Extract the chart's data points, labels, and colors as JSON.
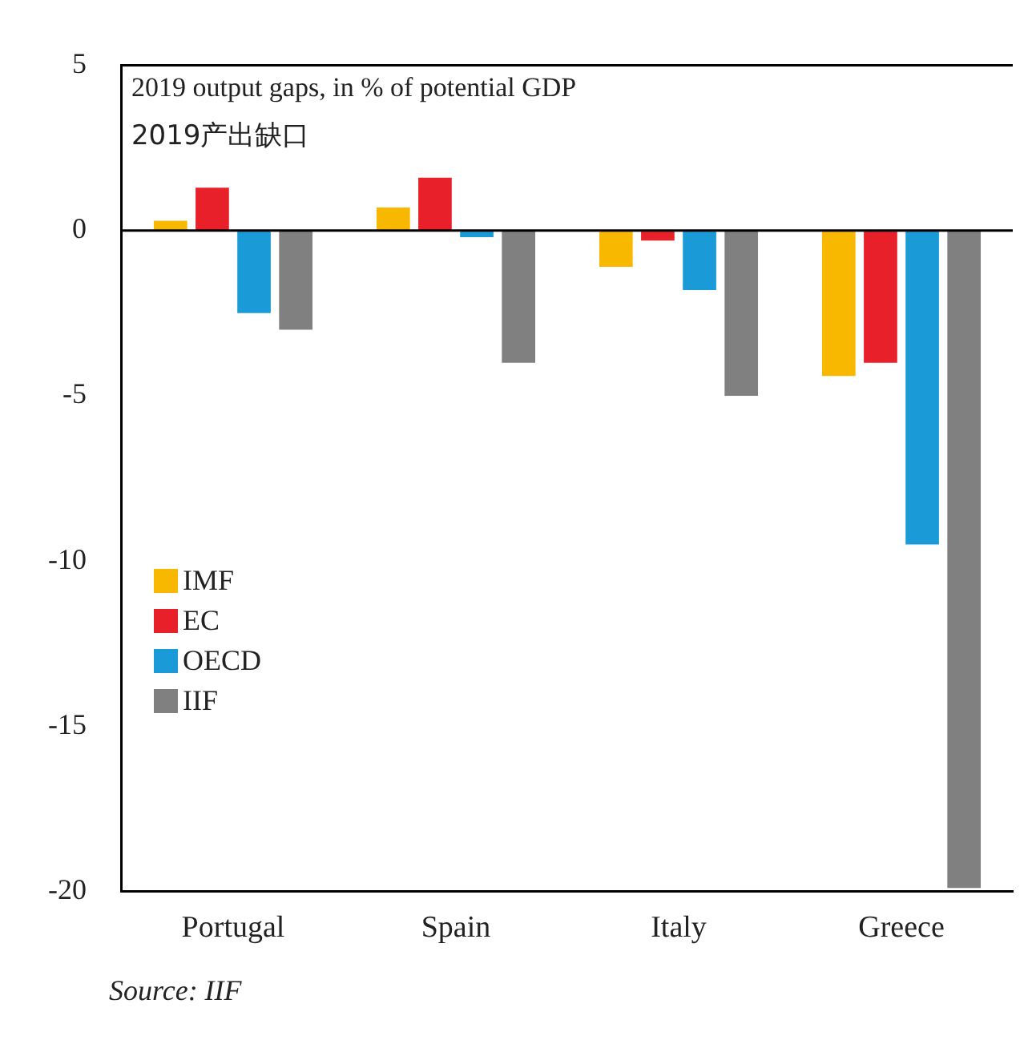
{
  "chart_data": {
    "type": "bar",
    "title": "2019 output gaps, in % of potential GDP",
    "subtitle": "2019产出缺口",
    "categories": [
      "Portugal",
      "Spain",
      "Italy",
      "Greece"
    ],
    "series": [
      {
        "name": "IMF",
        "color": "#f9b800",
        "values": [
          0.3,
          0.7,
          -1.1,
          -4.4
        ]
      },
      {
        "name": "EC",
        "color": "#e8202a",
        "values": [
          1.3,
          1.6,
          -0.3,
          -4.0
        ]
      },
      {
        "name": "OECD",
        "color": "#1a9bd7",
        "values": [
          -2.5,
          -0.2,
          -1.8,
          -9.5
        ]
      },
      {
        "name": "IIF",
        "color": "#808080",
        "values": [
          -3.0,
          -4.0,
          -5.0,
          -19.9
        ]
      }
    ],
    "ylim": [
      -20,
      5
    ],
    "yticks": [
      -20,
      -15,
      -10,
      -5,
      0,
      5
    ],
    "grid": false,
    "legend": "left",
    "ref_lines": [
      {
        "axis": "y",
        "value": 0,
        "color": "#000000"
      }
    ],
    "annotations": [
      "Source: IIF"
    ]
  }
}
